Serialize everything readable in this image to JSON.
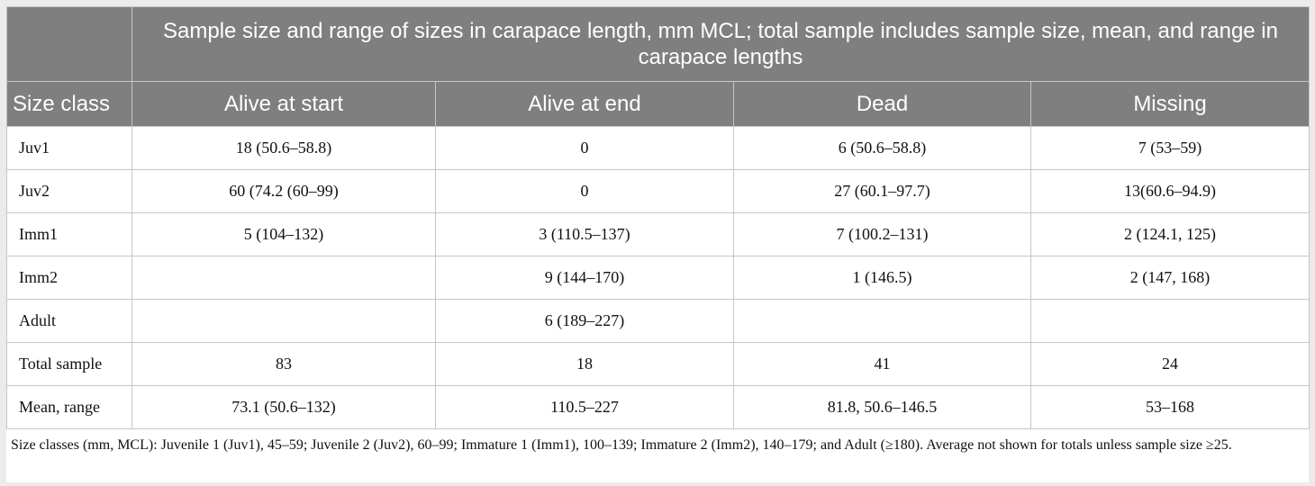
{
  "table": {
    "super_header": "Sample size and range of sizes in carapace length, mm MCL; total sample includes sample size, mean, and range in carapace lengths",
    "columns": [
      "Size class",
      "Alive at start",
      "Alive at end",
      "Dead",
      "Missing"
    ],
    "rows": [
      [
        "Juv1",
        "18 (50.6–58.8)",
        "0",
        "6 (50.6–58.8)",
        "7 (53–59)"
      ],
      [
        "Juv2",
        "60 (74.2 (60–99)",
        "0",
        "27 (60.1–97.7)",
        "13(60.6–94.9)"
      ],
      [
        "Imm1",
        "5 (104–132)",
        "3 (110.5–137)",
        "7 (100.2–131)",
        "2 (124.1, 125)"
      ],
      [
        "Imm2",
        "",
        "9 (144–170)",
        "1 (146.5)",
        "2 (147, 168)"
      ],
      [
        "Adult",
        "",
        "6 (189–227)",
        "",
        ""
      ],
      [
        "Total sample",
        "83",
        "18",
        "41",
        "24"
      ],
      [
        "Mean, range",
        "73.1 (50.6–132)",
        "110.5–227",
        "81.8, 50.6–146.5",
        "53–168"
      ]
    ]
  },
  "footnote": "Size classes (mm, MCL): Juvenile 1 (Juv1), 45–59; Juvenile 2 (Juv2), 60–99; Immature 1 (Imm1), 100–139; Immature 2 (Imm2), 140–179; and Adult (≥180). Average not shown for totals unless sample size ≥25.",
  "colors": {
    "header_bg": "#7f7f7f",
    "header_text": "#ffffff",
    "border": "#c6c6c6",
    "page_bg": "#ebebeb"
  }
}
